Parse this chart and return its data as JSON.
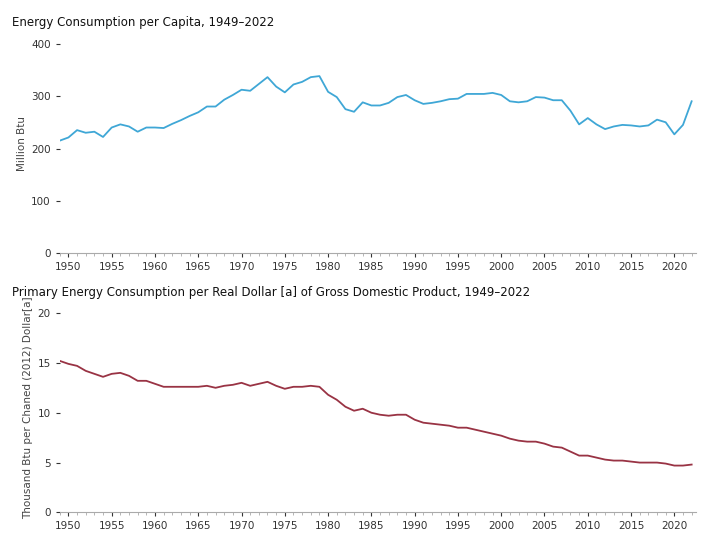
{
  "title1": "Energy Consumption per Capita, 1949–2022",
  "title2": "Primary Energy Consumption per Real Dollar [a] of Gross Domestic Product, 1949–2022",
  "ylabel1": "Million Btu",
  "ylabel2": "Thousand Btu per Chaned (2012) Dollar[a]",
  "color1": "#3fa7d6",
  "color2": "#993344",
  "years": [
    1949,
    1950,
    1951,
    1952,
    1953,
    1954,
    1955,
    1956,
    1957,
    1958,
    1959,
    1960,
    1961,
    1962,
    1963,
    1964,
    1965,
    1966,
    1967,
    1968,
    1969,
    1970,
    1971,
    1972,
    1973,
    1974,
    1975,
    1976,
    1977,
    1978,
    1979,
    1980,
    1981,
    1982,
    1983,
    1984,
    1985,
    1986,
    1987,
    1988,
    1989,
    1990,
    1991,
    1992,
    1993,
    1994,
    1995,
    1996,
    1997,
    1998,
    1999,
    2000,
    2001,
    2002,
    2003,
    2004,
    2005,
    2006,
    2007,
    2008,
    2009,
    2010,
    2011,
    2012,
    2013,
    2014,
    2015,
    2016,
    2017,
    2018,
    2019,
    2020,
    2021,
    2022
  ],
  "capita": [
    215,
    221,
    235,
    230,
    232,
    222,
    240,
    246,
    242,
    232,
    240,
    240,
    239,
    247,
    254,
    262,
    269,
    280,
    280,
    293,
    302,
    312,
    310,
    323,
    336,
    318,
    307,
    322,
    327,
    336,
    338,
    308,
    298,
    275,
    270,
    288,
    282,
    282,
    287,
    298,
    302,
    292,
    285,
    287,
    290,
    294,
    295,
    304,
    304,
    304,
    306,
    302,
    290,
    288,
    290,
    298,
    297,
    292,
    292,
    272,
    246,
    258,
    246,
    237,
    242,
    245,
    244,
    242,
    244,
    255,
    250,
    227,
    245,
    290
  ],
  "gdp_energy": [
    15.2,
    14.9,
    14.7,
    14.2,
    13.9,
    13.6,
    13.9,
    14.0,
    13.7,
    13.2,
    13.2,
    12.9,
    12.6,
    12.6,
    12.6,
    12.6,
    12.6,
    12.7,
    12.5,
    12.7,
    12.8,
    13.0,
    12.7,
    12.9,
    13.1,
    12.7,
    12.4,
    12.6,
    12.6,
    12.7,
    12.6,
    11.8,
    11.3,
    10.6,
    10.2,
    10.4,
    10.0,
    9.8,
    9.7,
    9.8,
    9.8,
    9.3,
    9.0,
    8.9,
    8.8,
    8.7,
    8.5,
    8.5,
    8.3,
    8.1,
    7.9,
    7.7,
    7.4,
    7.2,
    7.1,
    7.1,
    6.9,
    6.6,
    6.5,
    6.1,
    5.7,
    5.7,
    5.5,
    5.3,
    5.2,
    5.2,
    5.1,
    5.0,
    5.0,
    5.0,
    4.9,
    4.7,
    4.7,
    4.8
  ],
  "ylim1": [
    0,
    420
  ],
  "ylim2": [
    0,
    21
  ],
  "yticks1": [
    0,
    100,
    200,
    300,
    400
  ],
  "yticks2": [
    0,
    5,
    10,
    15,
    20
  ],
  "xticks": [
    1950,
    1955,
    1960,
    1965,
    1970,
    1975,
    1980,
    1985,
    1990,
    1995,
    2000,
    2005,
    2010,
    2015,
    2020
  ],
  "linewidth": 1.3,
  "title_fontsize": 8.5,
  "tick_fontsize": 7.5,
  "label_fontsize": 7.5,
  "bg_color": "#ffffff"
}
